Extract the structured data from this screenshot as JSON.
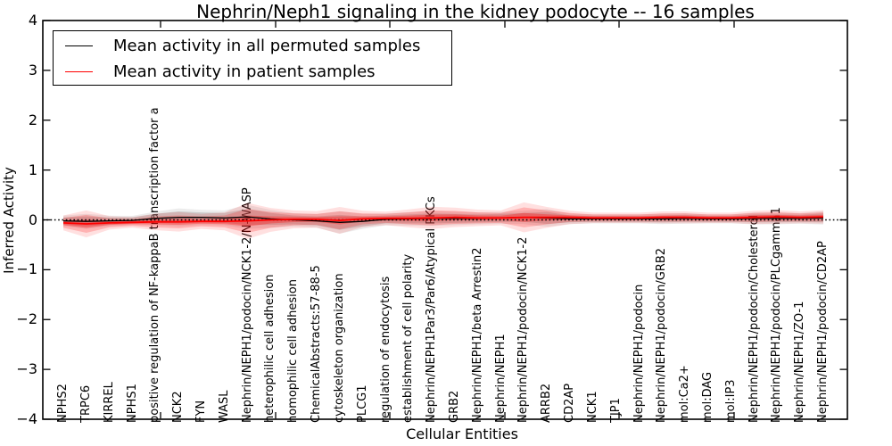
{
  "chart_data": {
    "type": "line",
    "title": "Nephrin/Neph1 signaling in the kidney podocyte -- 16 samples",
    "xlabel": "Cellular Entities",
    "ylabel": "Inferred Activity",
    "ylim": [
      -4,
      4
    ],
    "yticks": [
      4,
      3,
      2,
      1,
      0,
      -1,
      -2,
      -3,
      -4
    ],
    "yticklabels": [
      "4",
      "3",
      "2",
      "1",
      "0",
      "−1",
      "−2",
      "−3",
      "−4"
    ],
    "grid": false,
    "zero_line": {
      "style": "dotted",
      "color": "#000000",
      "y": 0
    },
    "legend": {
      "position": "upper left",
      "border_color": "#000000",
      "background": "#ffffff"
    },
    "categories": [
      "NPHS2",
      "TRPC6",
      "KIRREL",
      "NPHS1",
      "positive regulation of NF-kappaB transcription factor a",
      "NCK2",
      "FYN",
      "WASL",
      "Nephrin/NEPH1/podocin/NCK1-2/N-WASP",
      "heterophilic cell adhesion",
      "homophilic cell adhesion",
      "ChemicalAbstracts:57-88-5",
      "cytoskeleton organization",
      "PLCG1",
      "regulation of endocytosis",
      "establishment of cell polarity",
      "Nephrin/NEPH1Par3/Par6/Atypical PKCs",
      "GRB2",
      "Nephrin/NEPH1/beta Arrestin2",
      "Nephrin/NEPH1",
      "Nephrin/NEPH1/podocin/NCK1-2",
      "ARRB2",
      "CD2AP",
      "NCK1",
      "TJP1",
      "Nephrin/NEPH1/podocin",
      "Nephrin/NEPH1/podocin/GRB2",
      "mol:Ca2+",
      "mol:DAG",
      "mol:IP3",
      "Nephrin/NEPH1/podocin/Cholesterol",
      "Nephrin/NEPH1/podocin/PLCgamma1",
      "Nephrin/NEPH1/ZO-1",
      "Nephrin/NEPH1/podocin/CD2AP"
    ],
    "series": [
      {
        "name": "Mean activity in all permuted samples",
        "color": "#000000",
        "band_color": "#888888",
        "values": [
          -0.02,
          -0.03,
          -0.02,
          -0.01,
          0.03,
          0.05,
          0.05,
          0.04,
          0.06,
          0.02,
          0.0,
          -0.02,
          -0.05,
          -0.03,
          0.01,
          0.02,
          0.03,
          0.03,
          0.03,
          0.04,
          0.05,
          0.04,
          0.02,
          0.02,
          0.02,
          0.02,
          0.02,
          0.03,
          0.02,
          0.02,
          0.03,
          0.03,
          0.03,
          0.04
        ],
        "band_halfwidth": [
          0.07,
          0.1,
          0.07,
          0.06,
          0.09,
          0.12,
          0.1,
          0.1,
          0.16,
          0.12,
          0.09,
          0.09,
          0.15,
          0.1,
          0.08,
          0.09,
          0.1,
          0.09,
          0.08,
          0.08,
          0.09,
          0.12,
          0.07,
          0.06,
          0.06,
          0.06,
          0.07,
          0.07,
          0.06,
          0.06,
          0.08,
          0.08,
          0.07,
          0.09
        ]
      },
      {
        "name": "Mean activity in patient samples",
        "color": "#ff0000",
        "band_color": "#ff0000",
        "values": [
          -0.06,
          -0.08,
          -0.06,
          -0.05,
          -0.04,
          -0.04,
          -0.03,
          -0.03,
          -0.02,
          0.0,
          0.01,
          0.01,
          -0.01,
          0.02,
          0.03,
          0.03,
          0.04,
          0.05,
          0.04,
          0.04,
          0.05,
          0.05,
          0.05,
          0.04,
          0.04,
          0.04,
          0.05,
          0.05,
          0.04,
          0.04,
          0.05,
          0.06,
          0.05,
          0.06
        ],
        "band_halfwidth": [
          0.1,
          0.18,
          0.09,
          0.07,
          0.11,
          0.13,
          0.1,
          0.12,
          0.24,
          0.16,
          0.12,
          0.11,
          0.18,
          0.11,
          0.09,
          0.12,
          0.15,
          0.13,
          0.11,
          0.1,
          0.2,
          0.14,
          0.09,
          0.07,
          0.07,
          0.07,
          0.08,
          0.08,
          0.07,
          0.07,
          0.09,
          0.09,
          0.08,
          0.09
        ]
      }
    ]
  }
}
